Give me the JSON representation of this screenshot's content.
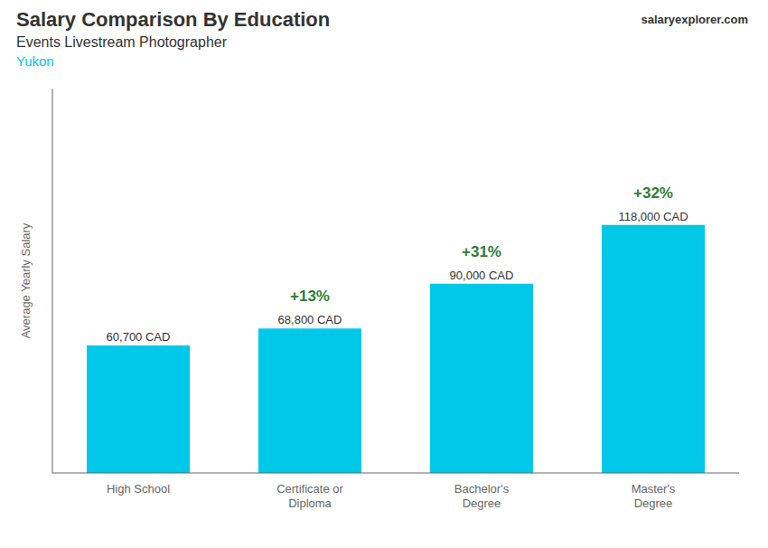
{
  "chart_data": {
    "type": "bar",
    "title": "Salary Comparison By Education",
    "subtitle": "Events Livestream Photographer",
    "annotations": [
      "Yukon",
      "salaryexplorer.com"
    ],
    "ylabel": "Average Yearly Salary",
    "categories": [
      "High School",
      "Certificate or\nDiploma",
      "Bachelor's\nDegree",
      "Master's\nDegree"
    ],
    "values": [
      60700,
      68800,
      90000,
      118000
    ],
    "value_labels": [
      "60,700 CAD",
      "68,800 CAD",
      "90,000 CAD",
      "118,000 CAD"
    ],
    "change_labels": [
      "+13%",
      "+31%",
      "+32%"
    ],
    "color": "#00C8E8",
    "ylim": [
      0,
      182900
    ],
    "grid": false,
    "tick_labels": "x",
    "data_labels": true
  }
}
